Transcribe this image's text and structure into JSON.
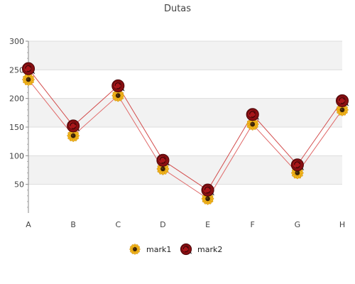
{
  "chart_data": {
    "type": "line",
    "title": "Dutas",
    "xlabel": "",
    "ylabel": "",
    "categories": [
      "A",
      "B",
      "C",
      "D",
      "E",
      "F",
      "G",
      "H"
    ],
    "ylim": [
      0,
      300
    ],
    "yticks": [
      50,
      100,
      150,
      200,
      250,
      300
    ],
    "grid": true,
    "legend_position": "bottom",
    "series": [
      {
        "name": "mark1",
        "values": [
          233,
          135,
          205,
          77,
          25,
          155,
          70,
          180
        ],
        "marker": "sunflower-icon",
        "line_color": "#e06a6a"
      },
      {
        "name": "mark2",
        "values": [
          252,
          152,
          222,
          92,
          40,
          172,
          84,
          196
        ],
        "marker": "rose-icon",
        "line_color": "#d24b4b"
      }
    ]
  }
}
